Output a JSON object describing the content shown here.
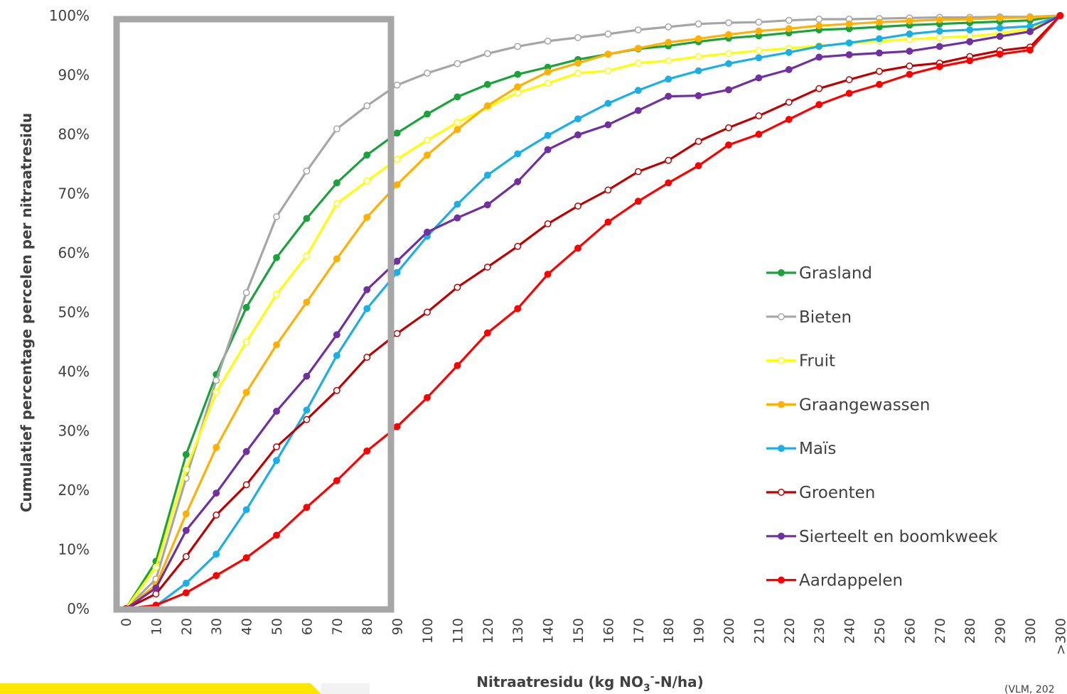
{
  "chart_data": {
    "type": "line",
    "title": "",
    "xlabel": "Nitraatresidu (kg NO3--N/ha)",
    "xlabel_parts": {
      "before": "Nitraatresidu  (kg NO",
      "sub": "3",
      "sup": "-",
      "after": "-N/ha)"
    },
    "ylabel": "Cumulatief percentage percelen per nitraatresidu",
    "ylim": [
      0,
      100
    ],
    "y_ticks": [
      "0%",
      "10%",
      "20%",
      "30%",
      "40%",
      "50%",
      "60%",
      "70%",
      "80%",
      "90%",
      "100%"
    ],
    "categories": [
      "0",
      "10",
      "20",
      "30",
      "40",
      "50",
      "60",
      "70",
      "80",
      "90",
      "100",
      "110",
      "120",
      "130",
      "140",
      "150",
      "160",
      "170",
      "180",
      "190",
      "200",
      "210",
      "220",
      "230",
      "240",
      "250",
      "260",
      "270",
      "280",
      "290",
      "300",
      ">300"
    ],
    "legend_placement": "right",
    "source_note": "(VLM, 202",
    "series": [
      {
        "name": "Grasland",
        "color": "#1aa33c",
        "marker": "filled",
        "values": [
          0,
          8,
          26,
          39.5,
          50.8,
          59.2,
          65.8,
          71.8,
          76.5,
          80.2,
          83.4,
          86.3,
          88.4,
          90.1,
          91.3,
          92.6,
          93.5,
          94.4,
          94.9,
          95.6,
          96.2,
          96.6,
          97.1,
          97.6,
          97.8,
          98.1,
          98.4,
          98.6,
          98.8,
          99.0,
          99.2,
          100
        ]
      },
      {
        "name": "Bieten",
        "color": "#a6a6a6",
        "marker": "open",
        "values": [
          0,
          5,
          22,
          38.5,
          53.3,
          66.1,
          73.8,
          80.9,
          84.8,
          88.3,
          90.3,
          91.9,
          93.6,
          94.8,
          95.7,
          96.3,
          96.9,
          97.6,
          98.1,
          98.6,
          98.8,
          98.9,
          99.2,
          99.4,
          99.4,
          99.5,
          99.6,
          99.7,
          99.7,
          99.8,
          99.8,
          100
        ]
      },
      {
        "name": "Fruit",
        "color": "#ffff00",
        "marker": "open",
        "values": [
          0,
          7,
          23.5,
          36.5,
          45,
          53,
          59.5,
          68.3,
          72.1,
          75.8,
          79,
          82,
          84.5,
          87,
          88.6,
          90.3,
          90.7,
          92,
          92.4,
          93.1,
          93.6,
          94.1,
          94.5,
          94.9,
          95.3,
          95.7,
          96,
          96.3,
          96.5,
          97,
          97.8,
          100
        ]
      },
      {
        "name": "Graangewassen",
        "color": "#ffb000",
        "marker": "filled",
        "values": [
          0,
          4,
          16,
          27.2,
          36.5,
          44.5,
          51.7,
          59,
          66,
          71.5,
          76.5,
          80.8,
          84.8,
          88,
          90.5,
          92,
          93.5,
          94.5,
          95.5,
          96.1,
          96.8,
          97.4,
          97.8,
          98.3,
          98.6,
          98.9,
          99.1,
          99.3,
          99.4,
          99.6,
          99.7,
          100
        ]
      },
      {
        "name": "Maïs",
        "color": "#1ab0e6",
        "marker": "filled",
        "values": [
          0,
          0.5,
          4.3,
          9.2,
          16.7,
          25,
          33.5,
          42.7,
          50.6,
          56.7,
          62.8,
          68.2,
          73.1,
          76.7,
          79.8,
          82.6,
          85.2,
          87.4,
          89.3,
          90.7,
          91.9,
          92.9,
          93.8,
          94.8,
          95.4,
          96.1,
          96.9,
          97.4,
          97.6,
          97.9,
          98.2,
          100
        ]
      },
      {
        "name": "Groenten",
        "color": "#c00000",
        "marker": "open",
        "values": [
          0,
          2.5,
          8.8,
          15.8,
          20.9,
          27.3,
          31.9,
          36.8,
          42.4,
          46.4,
          50,
          54.2,
          57.6,
          61.1,
          64.9,
          67.9,
          70.6,
          73.7,
          75.6,
          78.8,
          81.1,
          83.1,
          85.4,
          87.7,
          89.2,
          90.6,
          91.5,
          92,
          93.1,
          94.1,
          94.7,
          100
        ]
      },
      {
        "name": "Sierteelt en boomkweek",
        "color": "#7030a0",
        "marker": "filled",
        "values": [
          0,
          3.5,
          13.2,
          19.5,
          26.5,
          33.3,
          39.2,
          46.2,
          53.8,
          58.6,
          63.5,
          65.9,
          68.1,
          72,
          77.4,
          79.9,
          81.6,
          84,
          86.4,
          86.5,
          87.5,
          89.5,
          90.9,
          93,
          93.4,
          93.7,
          94,
          94.8,
          95.6,
          96.5,
          97.3,
          100
        ]
      },
      {
        "name": "Aardappelen",
        "color": "#ff0000",
        "marker": "filled",
        "values": [
          0,
          0.6,
          2.7,
          5.6,
          8.6,
          12.4,
          17.1,
          21.6,
          26.6,
          30.7,
          35.6,
          41,
          46.5,
          50.6,
          56.4,
          60.8,
          65.2,
          68.7,
          71.8,
          74.7,
          78.2,
          80,
          82.5,
          85,
          86.9,
          88.4,
          90.1,
          91.4,
          92.4,
          93.5,
          94.2,
          100
        ]
      }
    ]
  }
}
